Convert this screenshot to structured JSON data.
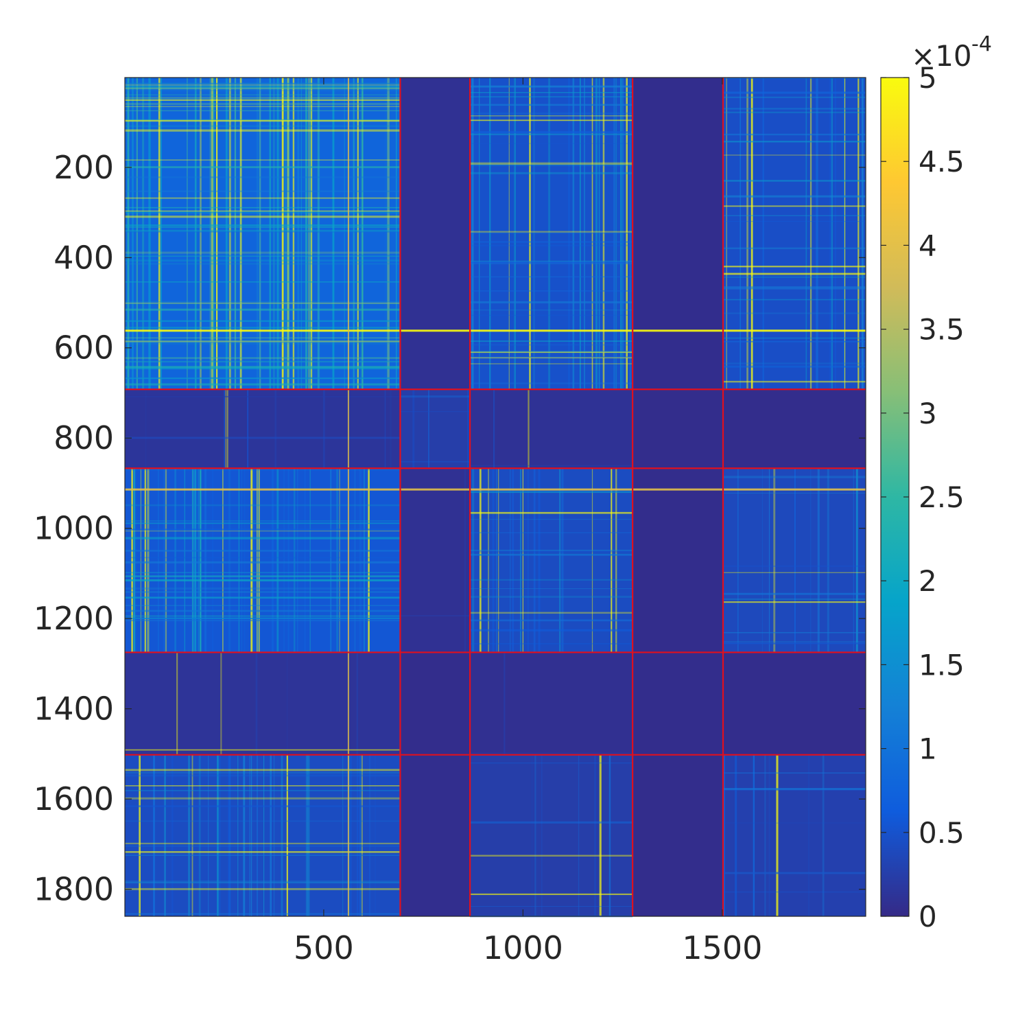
{
  "chart_data": {
    "type": "heatmap",
    "title": "",
    "xlabel": "",
    "ylabel": "",
    "xlim": [
      1,
      1860
    ],
    "ylim": [
      1,
      1860
    ],
    "y_direction": "reverse",
    "x_ticks": [
      500,
      1000,
      1500
    ],
    "y_ticks": [
      200,
      400,
      600,
      800,
      1000,
      1200,
      1400,
      1600,
      1800
    ],
    "block_boundaries": [
      692,
      867,
      1275,
      1502
    ],
    "boundary_color": "#e0101e",
    "blocks": [
      {
        "rows": [
          1,
          692
        ],
        "cols": [
          1,
          692
        ],
        "density": 0.62,
        "level": 0.00022
      },
      {
        "rows": [
          1,
          692
        ],
        "cols": [
          692,
          867
        ],
        "density": 0.0,
        "level": 2.5e-05
      },
      {
        "rows": [
          1,
          692
        ],
        "cols": [
          867,
          1275
        ],
        "density": 0.38,
        "level": 0.00014
      },
      {
        "rows": [
          1,
          692
        ],
        "cols": [
          1275,
          1502
        ],
        "density": 0.0,
        "level": 1.2e-05
      },
      {
        "rows": [
          1,
          692
        ],
        "cols": [
          1502,
          1860
        ],
        "density": 0.3,
        "level": 0.00013
      },
      {
        "rows": [
          692,
          867
        ],
        "cols": [
          1,
          692
        ],
        "density": 0.1,
        "level": 4e-05
      },
      {
        "rows": [
          692,
          867
        ],
        "cols": [
          692,
          867
        ],
        "density": 0.12,
        "level": 7e-05
      },
      {
        "rows": [
          692,
          867
        ],
        "cols": [
          867,
          1275
        ],
        "density": 0.03,
        "level": 3e-05
      },
      {
        "rows": [
          692,
          867
        ],
        "cols": [
          1275,
          1502
        ],
        "density": 0.0,
        "level": 1e-05
      },
      {
        "rows": [
          692,
          867
        ],
        "cols": [
          1502,
          1860
        ],
        "density": 0.0,
        "level": 1e-05
      },
      {
        "rows": [
          867,
          1275
        ],
        "cols": [
          1,
          692
        ],
        "density": 0.45,
        "level": 0.00016
      },
      {
        "rows": [
          867,
          1275
        ],
        "cols": [
          692,
          867
        ],
        "density": 0.02,
        "level": 2.5e-05
      },
      {
        "rows": [
          867,
          1275
        ],
        "cols": [
          867,
          1275
        ],
        "density": 0.3,
        "level": 0.00012
      },
      {
        "rows": [
          867,
          1275
        ],
        "cols": [
          1275,
          1502
        ],
        "density": 0.0,
        "level": 1e-05
      },
      {
        "rows": [
          867,
          1275
        ],
        "cols": [
          1502,
          1860
        ],
        "density": 0.22,
        "level": 0.00011
      },
      {
        "rows": [
          1275,
          1502
        ],
        "cols": [
          1,
          692
        ],
        "density": 0.05,
        "level": 3.5e-05
      },
      {
        "rows": [
          1275,
          1502
        ],
        "cols": [
          692,
          867
        ],
        "density": 0.0,
        "level": 1e-05
      },
      {
        "rows": [
          1275,
          1502
        ],
        "cols": [
          867,
          1275
        ],
        "density": 0.02,
        "level": 2e-05
      },
      {
        "rows": [
          1275,
          1502
        ],
        "cols": [
          1275,
          1502
        ],
        "density": 0.0,
        "level": 1e-05
      },
      {
        "rows": [
          1275,
          1502
        ],
        "cols": [
          1502,
          1860
        ],
        "density": 0.0,
        "level": 1e-05
      },
      {
        "rows": [
          1502,
          1860
        ],
        "cols": [
          1,
          692
        ],
        "density": 0.35,
        "level": 0.00012
      },
      {
        "rows": [
          1502,
          1860
        ],
        "cols": [
          692,
          867
        ],
        "density": 0.0,
        "level": 1.5e-05
      },
      {
        "rows": [
          1502,
          1860
        ],
        "cols": [
          867,
          1275
        ],
        "density": 0.12,
        "level": 7e-05
      },
      {
        "rows": [
          1502,
          1860
        ],
        "cols": [
          1275,
          1502
        ],
        "density": 0.0,
        "level": 1e-05
      },
      {
        "rows": [
          1502,
          1860
        ],
        "cols": [
          1502,
          1860
        ],
        "density": 0.15,
        "level": 8e-05
      }
    ],
    "highlight_lines": [
      {
        "orientation": "horizontal",
        "index": 562,
        "value": 0.0005
      },
      {
        "orientation": "horizontal",
        "index": 914,
        "value": 0.0004
      },
      {
        "orientation": "vertical",
        "index": 562,
        "value": 0.0004
      }
    ],
    "colorbar": {
      "colormap": "parula",
      "range": [
        0,
        0.0005
      ],
      "tick_labels": [
        "0",
        "0.5",
        "1",
        "1.5",
        "2",
        "2.5",
        "3",
        "3.5",
        "4",
        "4.5",
        "5"
      ],
      "exponent_label": "×10",
      "exponent_power": "-4",
      "colors": [
        "#352a87",
        "#0f5cdd",
        "#1481d6",
        "#06a4ca",
        "#2eb7a4",
        "#87bf77",
        "#d1bb59",
        "#fec832",
        "#f9fb0e"
      ]
    }
  }
}
